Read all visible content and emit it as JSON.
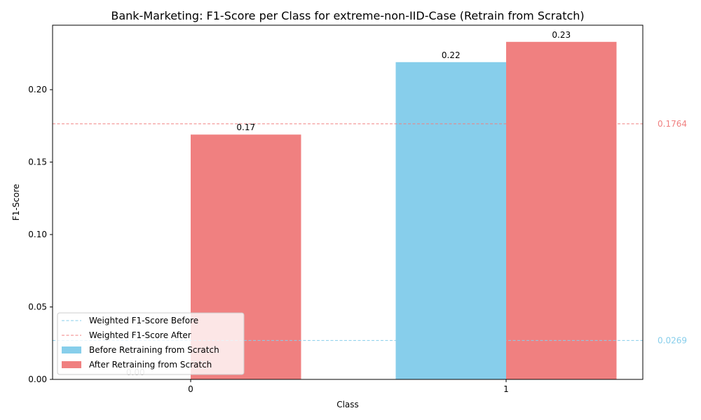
{
  "chart_data": {
    "type": "bar",
    "title": "Bank-Marketing: F1-Score per Class for extreme-non-IID-Case (Retrain from Scratch)",
    "xlabel": "Class",
    "ylabel": "F1-Score",
    "categories": [
      "0",
      "1"
    ],
    "ylim": [
      0,
      0.2445
    ],
    "yticks": [
      0.0,
      0.05,
      0.1,
      0.15,
      0.2
    ],
    "ytick_labels": [
      "0.00",
      "0.05",
      "0.10",
      "0.15",
      "0.20"
    ],
    "series": [
      {
        "name": "Before Retraining from Scratch",
        "color": "#87ceeb",
        "values": [
          0.0,
          0.219
        ],
        "value_labels": [
          "0.00",
          "0.22"
        ]
      },
      {
        "name": "After Retraining from Scratch",
        "color": "#f08080",
        "values": [
          0.169,
          0.233
        ],
        "value_labels": [
          "0.17",
          "0.23"
        ]
      }
    ],
    "reference_lines": [
      {
        "name": "Weighted F1-Score Before",
        "value": 0.0269,
        "label": "0.0269",
        "color": "#87ceeb"
      },
      {
        "name": "Weighted F1-Score After",
        "value": 0.1764,
        "label": "0.1764",
        "color": "#f08080"
      }
    ],
    "legend_position": "lower-left",
    "grid": false
  }
}
